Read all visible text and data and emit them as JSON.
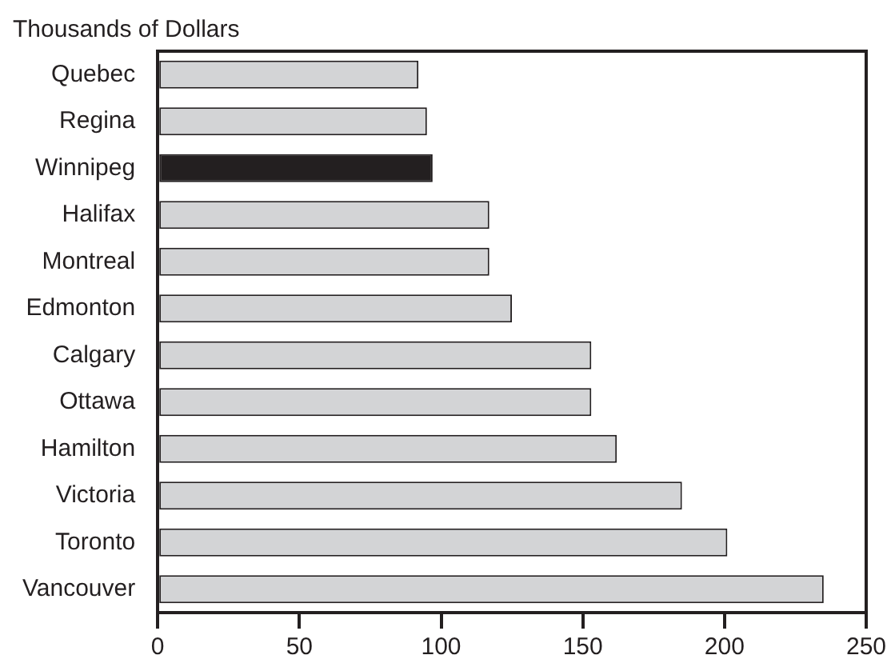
{
  "chart_data": {
    "type": "bar",
    "orientation": "horizontal",
    "title": "Thousands of Dollars",
    "categories": [
      "Quebec",
      "Regina",
      "Winnipeg",
      "Halifax",
      "Montreal",
      "Edmonton",
      "Calgary",
      "Ottawa",
      "Hamilton",
      "Victoria",
      "Toronto",
      "Vancouver"
    ],
    "values": [
      92,
      95,
      97,
      117,
      117,
      125,
      153,
      153,
      162,
      185,
      201,
      235
    ],
    "colors": [
      "#d3d4d6",
      "#d3d4d6",
      "#231f20",
      "#d3d4d6",
      "#d3d4d6",
      "#d3d4d6",
      "#d3d4d6",
      "#d3d4d6",
      "#d3d4d6",
      "#d3d4d6",
      "#d3d4d6",
      "#d3d4d6"
    ],
    "xlim": [
      0,
      250
    ],
    "xticks": [
      0,
      50,
      100,
      150,
      200,
      250
    ],
    "grid": false,
    "legend": false
  }
}
